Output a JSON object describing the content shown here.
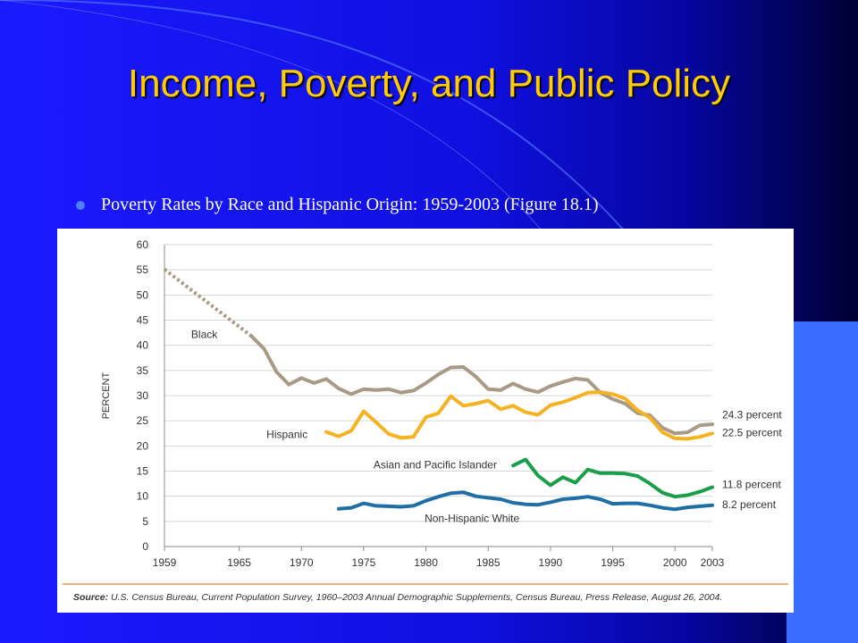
{
  "slide": {
    "title": "Income, Poverty, and Public Policy",
    "bullet": "Poverty Rates by Race and Hispanic Origin: 1959-2003 (Figure 18.1)"
  },
  "source": {
    "label": "Source:",
    "text": " U.S. Census Bureau, Current Population Survey, 1960–2003 Annual Demographic Supplements, Census Bureau, Press Release, August 26, 2004."
  },
  "colors": {
    "background": "#1a1aff",
    "title": "#ffcc00",
    "black": "#a89a85",
    "hispanic": "#f5b324",
    "asian": "#1a9e4a",
    "white": "#1f6ea6",
    "axis_line": "#e8b07a"
  },
  "chart_data": {
    "type": "line",
    "title": "",
    "xlabel": "",
    "ylabel": "PERCENT",
    "xlim": [
      1959,
      2003
    ],
    "ylim": [
      0,
      60
    ],
    "xticks": [
      "1959",
      "1965",
      "1970",
      "1975",
      "1980",
      "1985",
      "1990",
      "1995",
      "2000",
      "2003"
    ],
    "yticks": [
      "0",
      "5",
      "10",
      "15",
      "20",
      "25",
      "30",
      "35",
      "40",
      "45",
      "50",
      "55",
      "60"
    ],
    "grid": "horizontal",
    "series": [
      {
        "name": "Black",
        "color": "#a89a85",
        "dashed_segment": {
          "x": [
            1959,
            1966
          ],
          "y": [
            55.1,
            41.8
          ]
        },
        "x": [
          1966,
          1967,
          1968,
          1969,
          1970,
          1971,
          1972,
          1973,
          1974,
          1975,
          1976,
          1977,
          1978,
          1979,
          1980,
          1981,
          1982,
          1983,
          1984,
          1985,
          1986,
          1987,
          1988,
          1989,
          1990,
          1991,
          1992,
          1993,
          1994,
          1995,
          1996,
          1997,
          1998,
          1999,
          2000,
          2001,
          2002,
          2003
        ],
        "y": [
          41.8,
          39.3,
          34.7,
          32.2,
          33.5,
          32.5,
          33.3,
          31.4,
          30.3,
          31.3,
          31.1,
          31.3,
          30.6,
          31.0,
          32.5,
          34.2,
          35.6,
          35.7,
          33.8,
          31.3,
          31.1,
          32.4,
          31.3,
          30.7,
          31.9,
          32.7,
          33.4,
          33.1,
          30.6,
          29.3,
          28.4,
          26.5,
          26.1,
          23.6,
          22.5,
          22.7,
          24.1,
          24.3
        ],
        "end_label": "24.3 percent"
      },
      {
        "name": "Hispanic",
        "color": "#f5b324",
        "x": [
          1972,
          1973,
          1974,
          1975,
          1976,
          1977,
          1978,
          1979,
          1980,
          1981,
          1982,
          1983,
          1984,
          1985,
          1986,
          1987,
          1988,
          1989,
          1990,
          1991,
          1992,
          1993,
          1994,
          1995,
          1996,
          1997,
          1998,
          1999,
          2000,
          2001,
          2002,
          2003
        ],
        "y": [
          22.8,
          21.9,
          23.0,
          26.9,
          24.7,
          22.4,
          21.6,
          21.8,
          25.7,
          26.5,
          29.9,
          28.0,
          28.4,
          29.0,
          27.3,
          28.0,
          26.7,
          26.2,
          28.1,
          28.7,
          29.6,
          30.6,
          30.7,
          30.3,
          29.4,
          27.1,
          25.6,
          22.7,
          21.5,
          21.4,
          21.8,
          22.5
        ],
        "end_label": "22.5 percent"
      },
      {
        "name": "Asian and Pacific Islander",
        "color": "#1a9e4a",
        "x": [
          1987,
          1988,
          1989,
          1990,
          1991,
          1992,
          1993,
          1994,
          1995,
          1996,
          1997,
          1998,
          1999,
          2000,
          2001,
          2002,
          2003
        ],
        "y": [
          16.1,
          17.3,
          14.1,
          12.2,
          13.8,
          12.7,
          15.3,
          14.6,
          14.6,
          14.5,
          14.0,
          12.5,
          10.7,
          9.9,
          10.2,
          10.9,
          11.8
        ],
        "end_label": "11.8 percent"
      },
      {
        "name": "Non-Hispanic White",
        "color": "#1f6ea6",
        "x": [
          1973,
          1974,
          1975,
          1976,
          1977,
          1978,
          1979,
          1980,
          1981,
          1982,
          1983,
          1984,
          1985,
          1986,
          1987,
          1988,
          1989,
          1990,
          1991,
          1992,
          1993,
          1994,
          1995,
          1996,
          1997,
          1998,
          1999,
          2000,
          2001,
          2002,
          2003
        ],
        "y": [
          7.5,
          7.7,
          8.6,
          8.1,
          8.0,
          7.9,
          8.1,
          9.1,
          9.9,
          10.6,
          10.8,
          10.0,
          9.7,
          9.4,
          8.7,
          8.4,
          8.3,
          8.8,
          9.4,
          9.6,
          9.9,
          9.4,
          8.5,
          8.6,
          8.6,
          8.2,
          7.7,
          7.4,
          7.8,
          8.0,
          8.2
        ],
        "end_label": "8.2 percent"
      }
    ]
  }
}
